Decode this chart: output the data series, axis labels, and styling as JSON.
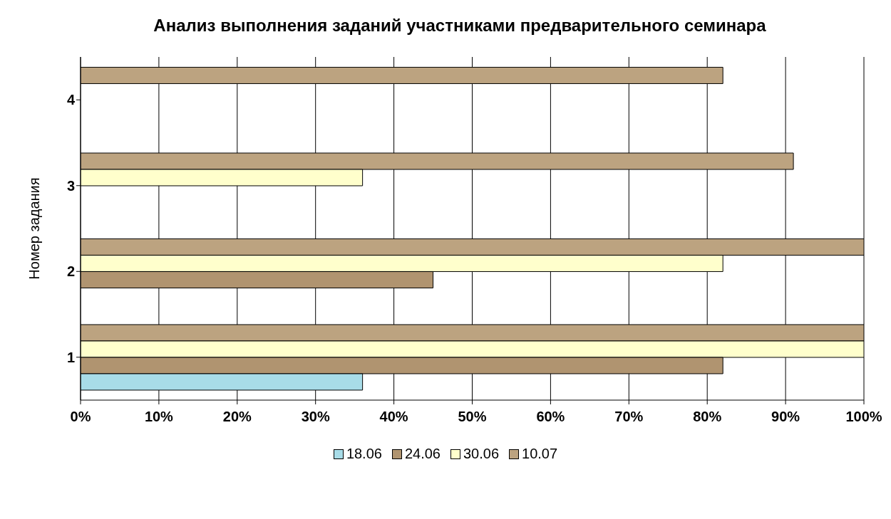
{
  "chart_data": {
    "type": "bar",
    "orientation": "horizontal",
    "title": "Анализ выполнения заданий участниками предварительного семинара",
    "ylabel": "Номер задания",
    "categories": [
      "4",
      "3",
      "2",
      "1"
    ],
    "series": [
      {
        "name": "18.06",
        "color": "#a8dce8",
        "values": [
          null,
          null,
          null,
          36
        ]
      },
      {
        "name": "24.06",
        "color": "#b09470",
        "values": [
          null,
          null,
          45,
          82
        ]
      },
      {
        "name": "30.06",
        "color": "#ffffcc",
        "values": [
          null,
          36,
          82,
          100
        ]
      },
      {
        "name": "10.07",
        "color": "#bca380",
        "values": [
          82,
          91,
          100,
          100
        ]
      }
    ],
    "xlim": [
      0,
      100
    ],
    "xticks": [
      {
        "value": 0,
        "label": "0%"
      },
      {
        "value": 10,
        "label": "10%"
      },
      {
        "value": 20,
        "label": "20%"
      },
      {
        "value": 30,
        "label": "30%"
      },
      {
        "value": 40,
        "label": "40%"
      },
      {
        "value": 50,
        "label": "50%"
      },
      {
        "value": 60,
        "label": "60%"
      },
      {
        "value": 70,
        "label": "70%"
      },
      {
        "value": 80,
        "label": "80%"
      },
      {
        "value": 90,
        "label": "90%"
      },
      {
        "value": 100,
        "label": "100%"
      }
    ],
    "grid": "x",
    "legend": "bottom"
  }
}
